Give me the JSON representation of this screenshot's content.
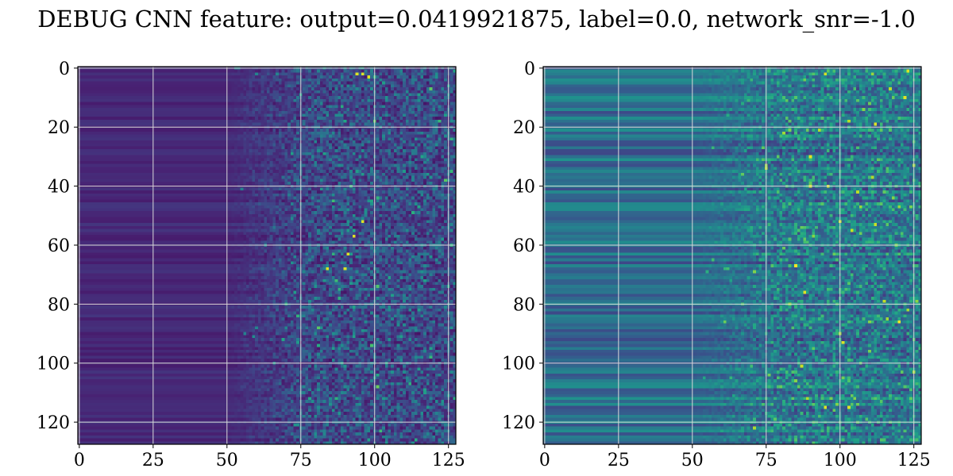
{
  "suptitle": "DEBUG CNN feature: output=0.0419921875, label=0.0, network_snr=-1.0",
  "colors": {
    "colormap": "viridis",
    "grid": "#d9d9d9",
    "axis": "#000000",
    "background": "#ffffff"
  },
  "chart_data": [
    {
      "type": "heatmap",
      "colormap": "viridis",
      "grid": true,
      "image_size": [
        128,
        128
      ],
      "xlim": [
        -0.5,
        127.5
      ],
      "ylim": [
        127.5,
        -0.5
      ],
      "xticks": [
        0,
        25,
        50,
        75,
        100,
        125
      ],
      "yticks": [
        0,
        20,
        40,
        60,
        80,
        100,
        120
      ],
      "xticklabels": [
        "0",
        "25",
        "50",
        "75",
        "100",
        "125"
      ],
      "yticklabels": [
        "0",
        "20",
        "40",
        "60",
        "80",
        "100",
        "120"
      ],
      "pattern": {
        "base_level": 0.1,
        "row_variation": 0.08,
        "noise_start_col": 50,
        "noise_full_col": 80,
        "noise_level": 0.32,
        "hotspots": [
          [
            2,
            94
          ],
          [
            2,
            96
          ],
          [
            3,
            98
          ],
          [
            57,
            93
          ],
          [
            63,
            91
          ],
          [
            68,
            84
          ],
          [
            68,
            90
          ],
          [
            52,
            96
          ]
        ]
      }
    },
    {
      "type": "heatmap",
      "colormap": "viridis",
      "grid": true,
      "image_size": [
        128,
        128
      ],
      "xlim": [
        -0.5,
        127.5
      ],
      "ylim": [
        127.5,
        -0.5
      ],
      "xticks": [
        0,
        25,
        50,
        75,
        100,
        125
      ],
      "yticks": [
        0,
        20,
        40,
        60,
        80,
        100,
        120
      ],
      "xticklabels": [
        "0",
        "25",
        "50",
        "75",
        "100",
        "125"
      ],
      "yticklabels": [
        "0",
        "20",
        "40",
        "60",
        "80",
        "100",
        "120"
      ],
      "pattern": {
        "base_level": 0.3,
        "row_variation": 0.3,
        "noise_start_col": 50,
        "noise_full_col": 80,
        "noise_level": 0.35,
        "hotspots": [
          [
            40,
            90
          ],
          [
            40,
            96
          ],
          [
            52,
            100
          ],
          [
            93,
            101
          ],
          [
            115,
            95
          ],
          [
            115,
            103
          ],
          [
            76,
            88
          ],
          [
            19,
            112
          ]
        ]
      }
    }
  ]
}
